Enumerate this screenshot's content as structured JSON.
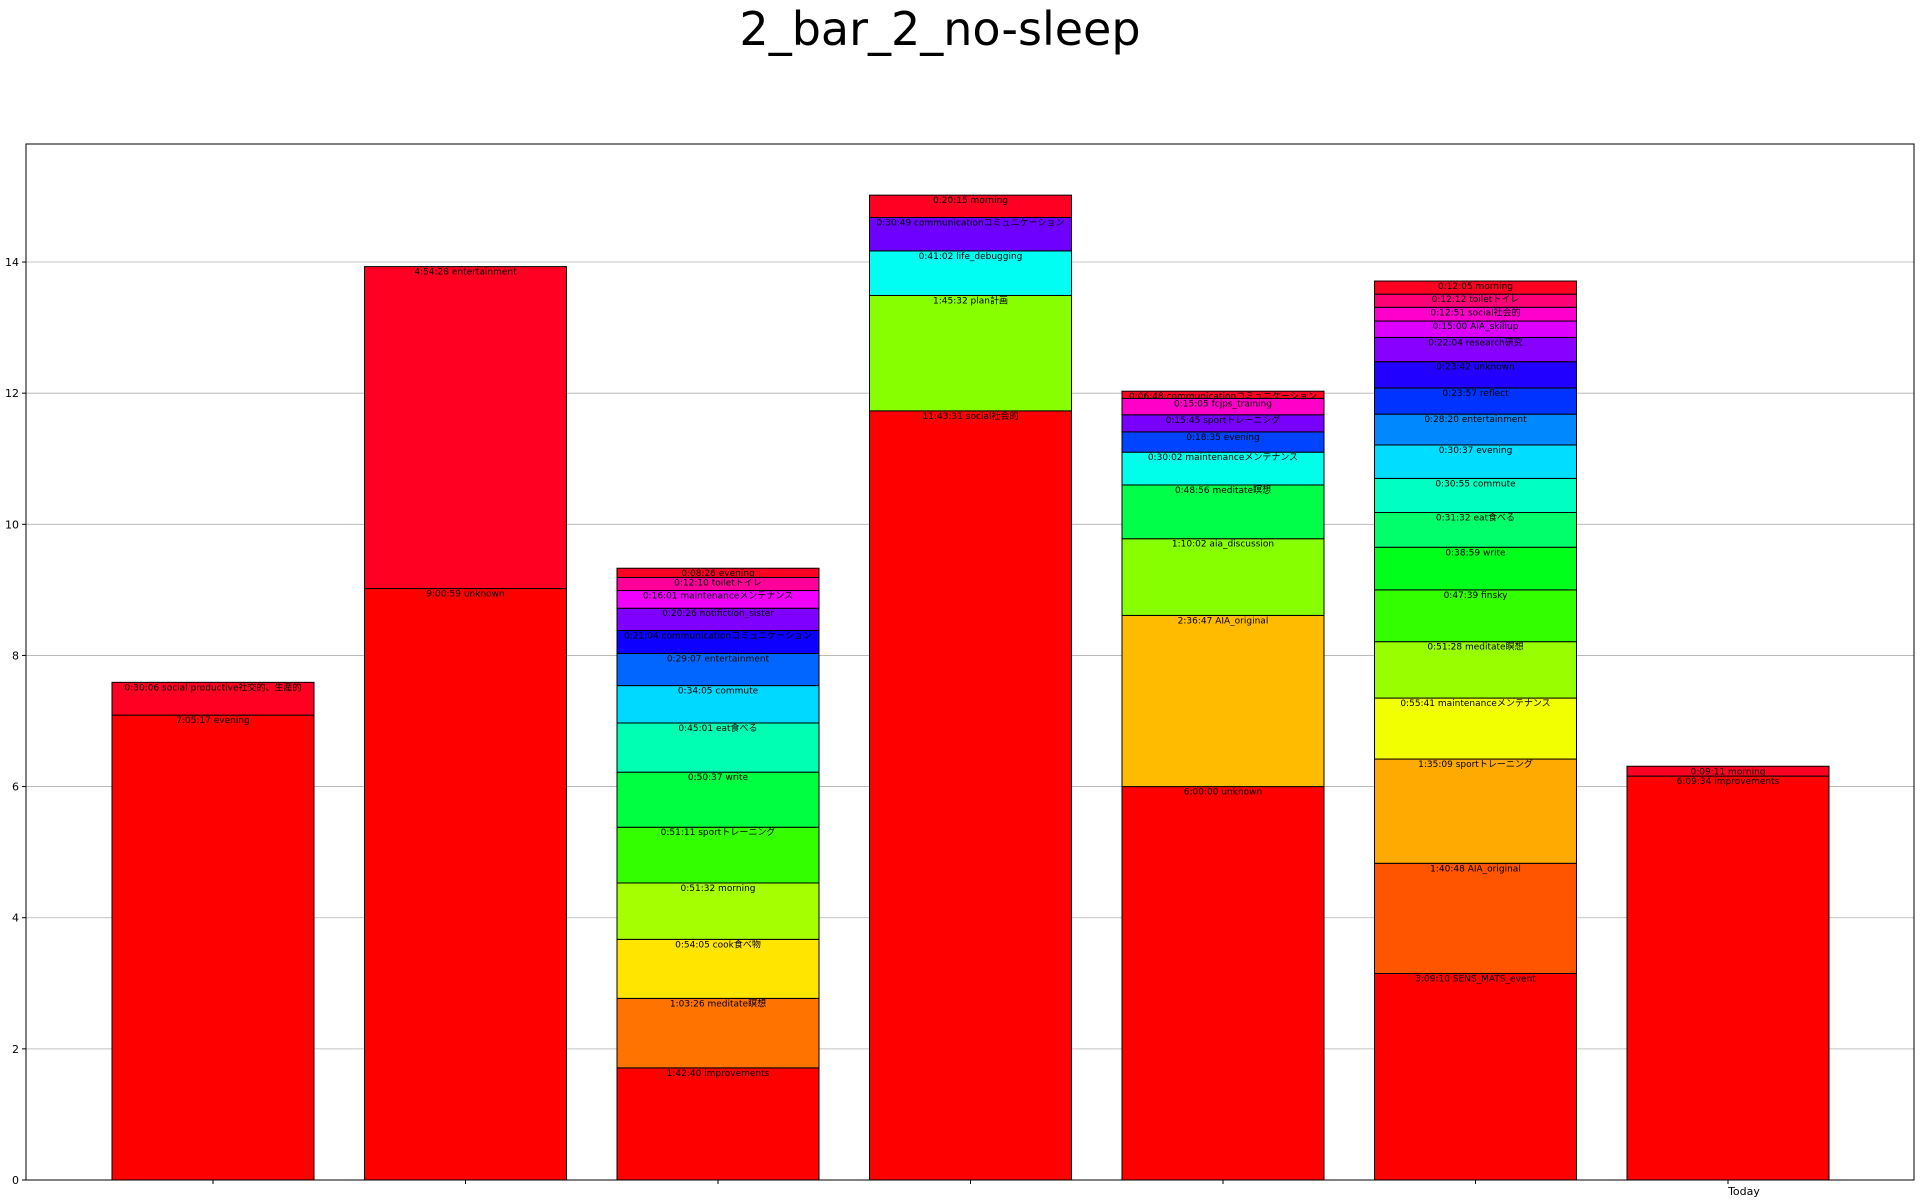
{
  "chart_data": {
    "type": "bar",
    "stacked": true,
    "title": "2_bar_2_no-sleep",
    "xlabel": "",
    "ylabel": "",
    "ylim": [
      0,
      15.8
    ],
    "yticks": [
      0,
      2,
      4,
      6,
      8,
      10,
      12,
      14
    ],
    "categories": [
      "",
      "",
      "",
      "",
      "",
      "",
      "Today"
    ],
    "grid": "horizontal",
    "bars": [
      {
        "category": "",
        "segments": [
          {
            "label": "7:05:17 evening",
            "value": 7.09,
            "color": "#ff0000"
          },
          {
            "label": "0:30:06 social productive社交的、生産的",
            "value": 0.5,
            "color": "#ff0022"
          }
        ]
      },
      {
        "category": "",
        "segments": [
          {
            "label": "9:00:59 unknown",
            "value": 9.02,
            "color": "#ff0000"
          },
          {
            "label": "4:54:28 entertainment",
            "value": 4.91,
            "color": "#ff0022"
          }
        ]
      },
      {
        "category": "",
        "segments": [
          {
            "label": "1:42:40 improvements",
            "value": 1.71,
            "color": "#ff0000"
          },
          {
            "label": "1:03:26 meditate瞑想",
            "value": 1.06,
            "color": "#ff7300"
          },
          {
            "label": "0:54:05 cook食べ物",
            "value": 0.9,
            "color": "#ffe500"
          },
          {
            "label": "0:51:32 morning",
            "value": 0.86,
            "color": "#a6ff00"
          },
          {
            "label": "0:51:11 sportトレーニング",
            "value": 0.85,
            "color": "#33ff00"
          },
          {
            "label": "0:50:37 write",
            "value": 0.84,
            "color": "#00ff40"
          },
          {
            "label": "0:45:01 eat食べる",
            "value": 0.75,
            "color": "#00ffb3"
          },
          {
            "label": "0:34:05 commute",
            "value": 0.57,
            "color": "#00d9ff"
          },
          {
            "label": "0:29:07 entertainment",
            "value": 0.49,
            "color": "#0066ff"
          },
          {
            "label": "0:21:04 communicationコミュニケーション",
            "value": 0.35,
            "color": "#0d00ff"
          },
          {
            "label": "0:20:26 notifiction_sister",
            "value": 0.34,
            "color": "#8000ff"
          },
          {
            "label": "0:16:01 maintenanceメンテナンス",
            "value": 0.27,
            "color": "#f200ff"
          },
          {
            "label": "0:12:10 toiletトイレ",
            "value": 0.2,
            "color": "#ff0099"
          },
          {
            "label": "0:08:26 evening",
            "value": 0.14,
            "color": "#ff0022"
          }
        ]
      },
      {
        "category": "",
        "segments": [
          {
            "label": "11:43:31 social社会的",
            "value": 11.73,
            "color": "#ff0000"
          },
          {
            "label": "1:45:32 plan計画",
            "value": 1.76,
            "color": "#88ff00"
          },
          {
            "label": "0:41:02 life_debugging",
            "value": 0.68,
            "color": "#00fff2"
          },
          {
            "label": "0:30:49 communicationコミュニケーション",
            "value": 0.51,
            "color": "#6e00ff"
          },
          {
            "label": "0:20:15 morning",
            "value": 0.34,
            "color": "#ff0022"
          }
        ]
      },
      {
        "category": "",
        "segments": [
          {
            "label": "6:00:00 unknown",
            "value": 6.0,
            "color": "#ff0000"
          },
          {
            "label": "2:36:47 AIA_original",
            "value": 2.61,
            "color": "#ffbb00"
          },
          {
            "label": "1:10:02 aia_discussion",
            "value": 1.17,
            "color": "#88ff00"
          },
          {
            "label": "0:48:56 meditate瞑想",
            "value": 0.82,
            "color": "#00ff48"
          },
          {
            "label": "0:30:02 maintenanceメンテナンス",
            "value": 0.5,
            "color": "#00ffea"
          },
          {
            "label": "0:18:35 evening",
            "value": 0.31,
            "color": "#0044ff"
          },
          {
            "label": "0:15:45 sportトレーニング",
            "value": 0.26,
            "color": "#7700ff"
          },
          {
            "label": "0:15:05 fcjps_training",
            "value": 0.25,
            "color": "#ff00c8"
          },
          {
            "label": "0:06:48 communicationコミュニケーション",
            "value": 0.11,
            "color": "#ff0022"
          }
        ]
      },
      {
        "category": "",
        "segments": [
          {
            "label": "3:09:10 SENS_MATS_event",
            "value": 3.15,
            "color": "#ff0000"
          },
          {
            "label": "1:40:48 AIA_original",
            "value": 1.68,
            "color": "#ff5500"
          },
          {
            "label": "1:35:09 sportトレーニング",
            "value": 1.59,
            "color": "#ffaa00"
          },
          {
            "label": "0:55:41 maintenanceメンテナンス",
            "value": 0.93,
            "color": "#f2ff00"
          },
          {
            "label": "0:51:28 meditate瞑想",
            "value": 0.86,
            "color": "#99ff00"
          },
          {
            "label": "0:47:39 finsky",
            "value": 0.79,
            "color": "#33ff00"
          },
          {
            "label": "0:38:59 write",
            "value": 0.65,
            "color": "#00ff1a"
          },
          {
            "label": "0:31:32 eat食べる",
            "value": 0.53,
            "color": "#00ff6a"
          },
          {
            "label": "0:30:55 commute",
            "value": 0.52,
            "color": "#00ffc3"
          },
          {
            "label": "0:30:37 evening",
            "value": 0.51,
            "color": "#00ddff"
          },
          {
            "label": "0:28:20 entertainment",
            "value": 0.47,
            "color": "#0088ff"
          },
          {
            "label": "0:23:57 reflect",
            "value": 0.4,
            "color": "#0033ff"
          },
          {
            "label": "0:23:42 unknown",
            "value": 0.4,
            "color": "#2200ff"
          },
          {
            "label": "0:22:04 research研究",
            "value": 0.37,
            "color": "#8800ff"
          },
          {
            "label": "0:15:00 AIA_skillup",
            "value": 0.25,
            "color": "#dd00ff"
          },
          {
            "label": "0:12:51 social社会的",
            "value": 0.21,
            "color": "#ff00cc"
          },
          {
            "label": "0:12:12 toiletトイレ",
            "value": 0.2,
            "color": "#ff0077"
          },
          {
            "label": "0:12:05 morning",
            "value": 0.2,
            "color": "#ff0022"
          }
        ]
      },
      {
        "category": "Today",
        "segments": [
          {
            "label": "6:09:34 improvements",
            "value": 6.16,
            "color": "#ff0000"
          },
          {
            "label": "0:09:11 morning",
            "value": 0.15,
            "color": "#ff0022"
          }
        ]
      }
    ]
  }
}
